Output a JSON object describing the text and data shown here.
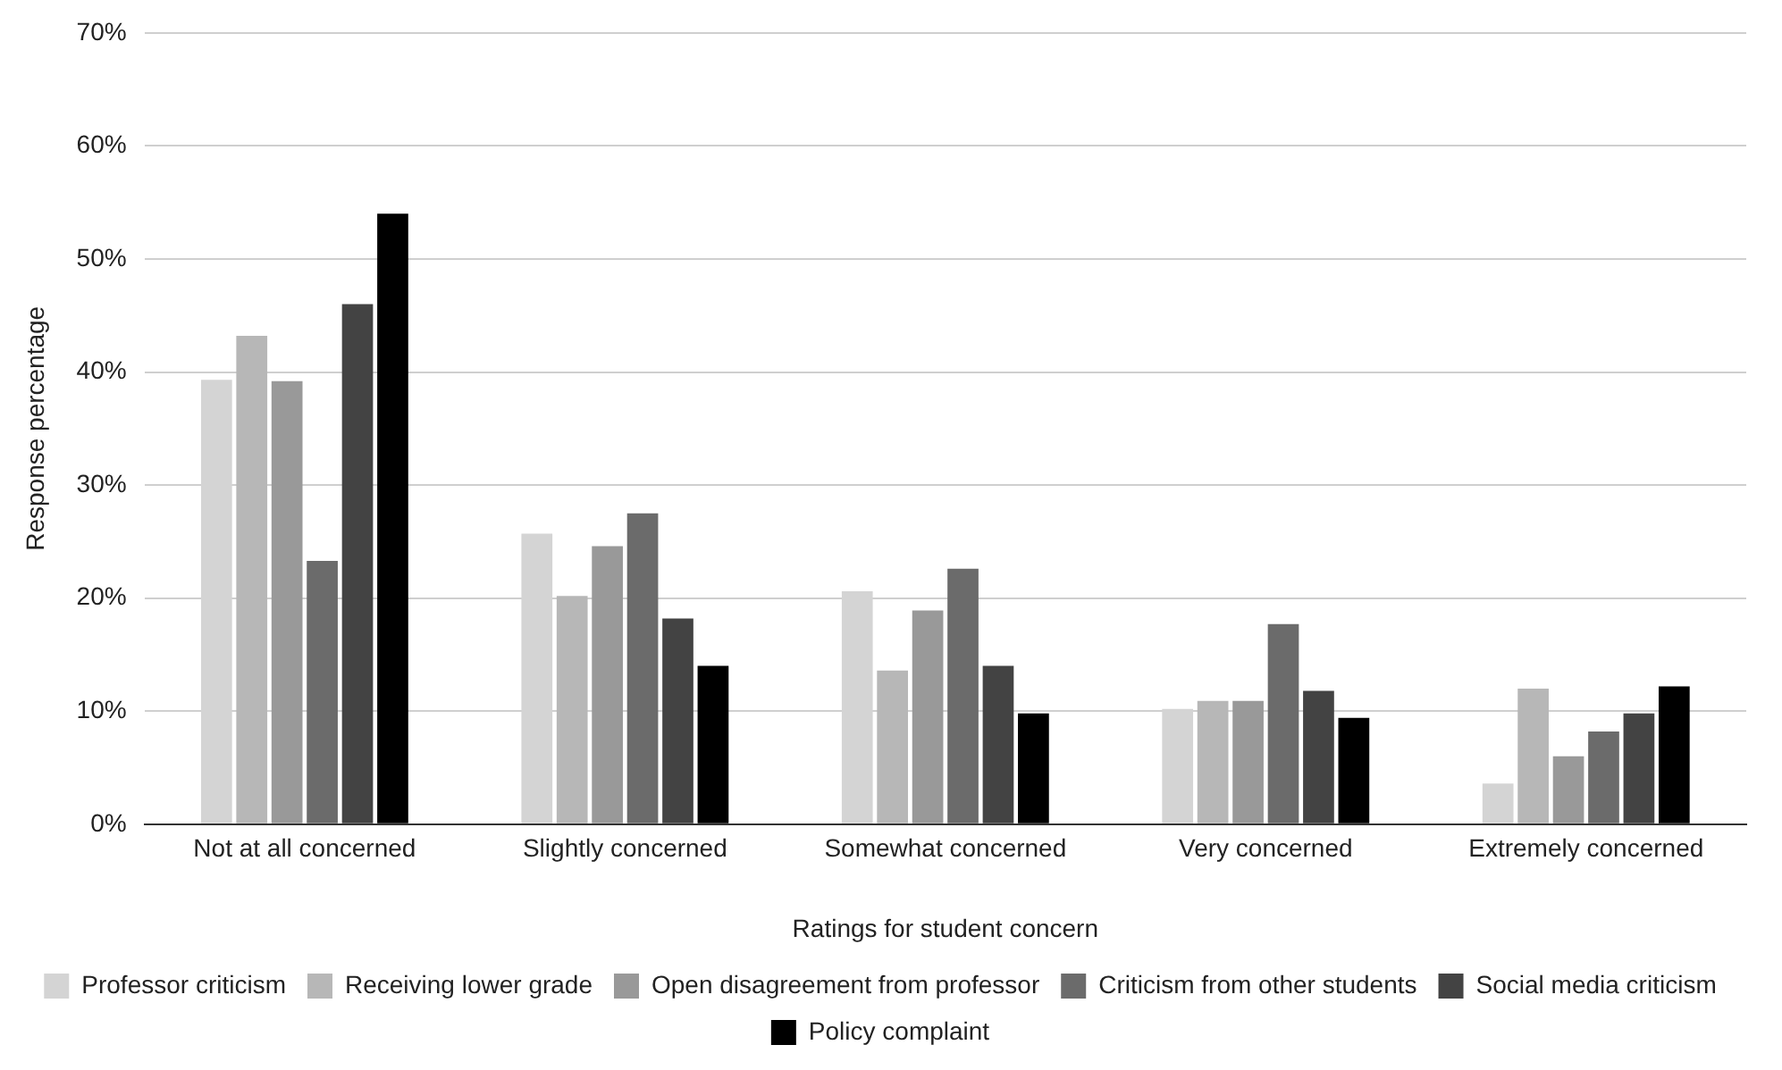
{
  "chart_data": {
    "type": "bar",
    "xlabel": "Ratings for student concern",
    "ylabel": "Response percentage",
    "categories": [
      "Not at all concerned",
      "Slightly concerned",
      "Somewhat concerned",
      "Very concerned",
      "Extremely concerned"
    ],
    "series": [
      {
        "name": "Professor criticism",
        "color": "#d4d4d4",
        "values": [
          39.3,
          25.7,
          20.6,
          10.2,
          3.6
        ]
      },
      {
        "name": "Receiving lower grade",
        "color": "#b7b7b7",
        "values": [
          43.2,
          20.2,
          13.6,
          10.9,
          12
        ]
      },
      {
        "name": "Open disagreement from professor",
        "color": "#999999",
        "values": [
          39.2,
          24.6,
          18.9,
          10.9,
          6
        ]
      },
      {
        "name": "Criticism from other students",
        "color": "#6b6b6b",
        "values": [
          23.3,
          27.5,
          22.6,
          17.7,
          8.2
        ]
      },
      {
        "name": "Social media criticism",
        "color": "#434343",
        "values": [
          46,
          18.2,
          14,
          11.8,
          9.8
        ]
      },
      {
        "name": "Policy complaint",
        "color": "#000000",
        "values": [
          54,
          14,
          9.8,
          9.4,
          12.2
        ]
      }
    ],
    "ylim": [
      0,
      70
    ],
    "yticks": [
      {
        "value": 0,
        "label": "0%"
      },
      {
        "value": 10,
        "label": "10%"
      },
      {
        "value": 20,
        "label": "20%"
      },
      {
        "value": 30,
        "label": "30%"
      },
      {
        "value": 40,
        "label": "40%"
      },
      {
        "value": 50,
        "label": "50%"
      },
      {
        "value": 60,
        "label": "60%"
      },
      {
        "value": 70,
        "label": "70%"
      }
    ],
    "grid": "y",
    "legend": "bottom"
  }
}
